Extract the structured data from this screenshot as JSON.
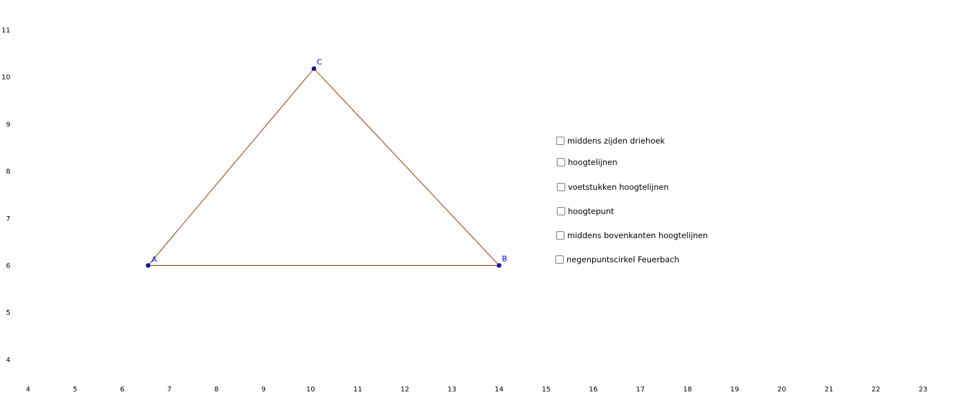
{
  "graphics_view": {
    "x_axis_ticks": [
      "4",
      "5",
      "6",
      "7",
      "8",
      "9",
      "10",
      "11",
      "12",
      "13",
      "14",
      "15",
      "16",
      "17",
      "18",
      "19",
      "20",
      "21",
      "22",
      "23"
    ],
    "y_axis_ticks": [
      "4",
      "5",
      "6",
      "7",
      "8",
      "9",
      "10",
      "11"
    ],
    "triangle": {
      "stroke_color": "#993300",
      "point_color": "#1515b8",
      "label_color": "#0000cc",
      "points": [
        {
          "label": "A",
          "x": 6.55,
          "y": 6.0
        },
        {
          "label": "B",
          "x": 14.0,
          "y": 6.0
        },
        {
          "label": "C",
          "x": 10.07,
          "y": 10.18
        }
      ]
    }
  },
  "checkboxes": [
    {
      "label": "middens zijden driehoek",
      "checked": false
    },
    {
      "label": "hoogtelijnen",
      "checked": false
    },
    {
      "label": "voetstukken hoogtelijnen",
      "checked": false
    },
    {
      "label": "hoogtepunt",
      "checked": false
    },
    {
      "label": "middens bovenkanten hoogtelijnen",
      "checked": false
    },
    {
      "label": "negenpuntscirkel Feuerbach",
      "checked": false
    }
  ]
}
